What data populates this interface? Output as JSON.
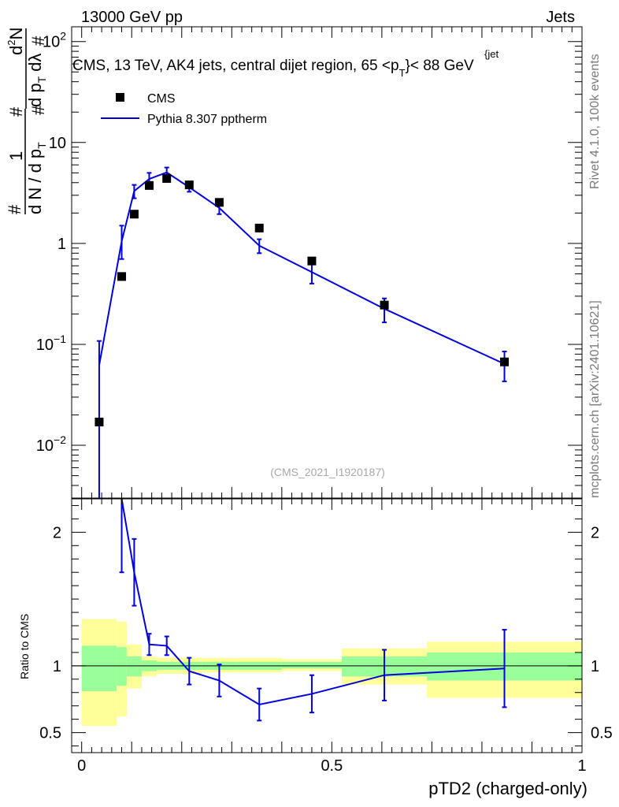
{
  "header": {
    "left": "13000 GeV pp",
    "right": "Jets"
  },
  "side": {
    "version": "Rivet 4.1.0,  100k events",
    "credit": "mcplots.cern.ch [arXiv:2401.10621]"
  },
  "chart_data": [
    {
      "type": "scatter",
      "panel": "main",
      "title_main": "CMS, 13 TeV, AK4 jets, central dijet region, 65 <p",
      "title_sub": "T",
      "title_sup": "{jet",
      "title_close": "}< 88 GeV",
      "ylabel_parts": [
        "1",
        "d N / d p",
        "T",
        "#",
        "d",
        "2",
        "N",
        "d p",
        "T",
        "dλ",
        "#",
        "#",
        "#"
      ],
      "yscale": "log",
      "ylim": [
        0.003,
        140
      ],
      "xlim": [
        -0.02,
        1.0
      ],
      "yticks": [
        {
          "v": 0.01,
          "b": "10",
          "e": "−2"
        },
        {
          "v": 0.1,
          "b": "10",
          "e": "−1"
        },
        {
          "v": 1,
          "b": "1",
          "e": ""
        },
        {
          "v": 10,
          "b": "10",
          "e": ""
        },
        {
          "v": 100,
          "b": "10",
          "e": "2"
        }
      ],
      "watermark": "(CMS_2021_I1920187)",
      "legend": {
        "position": "top-left",
        "data_label": "CMS",
        "mc_label": "Pythia 8.307 pptherm"
      },
      "colors": {
        "data": "#000000",
        "mc": "#0000dd"
      },
      "series": [
        {
          "name": "CMS",
          "x": [
            0.035,
            0.08,
            0.105,
            0.135,
            0.17,
            0.215,
            0.275,
            0.355,
            0.46,
            0.605,
            0.845
          ],
          "y": [
            0.017,
            0.47,
            1.95,
            3.75,
            4.4,
            3.8,
            2.55,
            1.42,
            0.67,
            0.245,
            0.067
          ]
        },
        {
          "name": "Pythia 8.307 pptherm",
          "x": [
            0.035,
            0.08,
            0.105,
            0.135,
            0.17,
            0.215,
            0.275,
            0.355,
            0.46,
            0.605,
            0.845
          ],
          "y": [
            0.062,
            1.05,
            3.3,
            4.35,
            5.05,
            3.6,
            2.25,
            0.95,
            0.52,
            0.225,
            0.064
          ],
          "err_lo": [
            0.062,
            0.35,
            0.5,
            0.55,
            0.6,
            0.35,
            0.3,
            0.15,
            0.12,
            0.06,
            0.021
          ],
          "err_hi": [
            0.046,
            0.45,
            0.5,
            0.65,
            0.6,
            0.35,
            0.3,
            0.15,
            0.12,
            0.06,
            0.021
          ]
        }
      ]
    },
    {
      "type": "line",
      "panel": "ratio",
      "ylabel": "Ratio to CMS",
      "xlabel": "pTD2 (charged-only)",
      "ylim": [
        0.35,
        2.25
      ],
      "xlim": [
        -0.02,
        1.0
      ],
      "yticks": [
        0.5,
        1,
        2
      ],
      "xticks": [
        0,
        0.5,
        1
      ],
      "xtick_labels": [
        "0",
        "0.5",
        "1"
      ],
      "ytick_labels": [
        "0.5",
        "1",
        "2"
      ],
      "reference": 1.0,
      "colors": {
        "band_outer": "#ffff99",
        "band_inner": "#99ff99",
        "mc": "#0000dd",
        "ref": "#000000"
      },
      "bands": [
        {
          "x0": 0.0,
          "x1": 0.07,
          "outer": [
            0.55,
            1.35
          ],
          "inner": [
            0.81,
            1.15
          ]
        },
        {
          "x0": 0.07,
          "x1": 0.09,
          "outer": [
            0.62,
            1.33
          ],
          "inner": [
            0.85,
            1.14
          ]
        },
        {
          "x0": 0.09,
          "x1": 0.12,
          "outer": [
            0.83,
            1.16
          ],
          "inner": [
            0.92,
            1.07
          ]
        },
        {
          "x0": 0.12,
          "x1": 0.15,
          "outer": [
            0.92,
            1.07
          ],
          "inner": [
            0.96,
            1.04
          ]
        },
        {
          "x0": 0.15,
          "x1": 0.19,
          "outer": [
            0.94,
            1.06
          ],
          "inner": [
            0.97,
            1.03
          ]
        },
        {
          "x0": 0.19,
          "x1": 0.24,
          "outer": [
            0.94,
            1.06
          ],
          "inner": [
            0.97,
            1.03
          ]
        },
        {
          "x0": 0.24,
          "x1": 0.31,
          "outer": [
            0.95,
            1.06
          ],
          "inner": [
            0.97,
            1.03
          ]
        },
        {
          "x0": 0.31,
          "x1": 0.4,
          "outer": [
            0.95,
            1.06
          ],
          "inner": [
            0.97,
            1.03
          ]
        },
        {
          "x0": 0.4,
          "x1": 0.52,
          "outer": [
            0.96,
            1.05
          ],
          "inner": [
            0.98,
            1.03
          ]
        },
        {
          "x0": 0.52,
          "x1": 0.69,
          "outer": [
            0.86,
            1.13
          ],
          "inner": [
            0.92,
            1.07
          ]
        },
        {
          "x0": 0.69,
          "x1": 1.0,
          "outer": [
            0.76,
            1.18
          ],
          "inner": [
            0.89,
            1.1
          ]
        }
      ],
      "series": [
        {
          "name": "Pythia 8.307 pptherm / CMS",
          "x": [
            0.08,
            0.105,
            0.135,
            0.17,
            0.215,
            0.275,
            0.355,
            0.46,
            0.605,
            0.845
          ],
          "y": [
            2.3,
            1.7,
            1.16,
            1.15,
            0.96,
            0.89,
            0.71,
            0.79,
            0.93,
            0.98
          ],
          "err_lo": [
            0.6,
            0.25,
            0.08,
            0.07,
            0.1,
            0.12,
            0.12,
            0.14,
            0.19,
            0.29
          ],
          "err_hi": [
            0.6,
            0.25,
            0.08,
            0.07,
            0.1,
            0.12,
            0.12,
            0.14,
            0.19,
            0.29
          ]
        }
      ]
    }
  ]
}
